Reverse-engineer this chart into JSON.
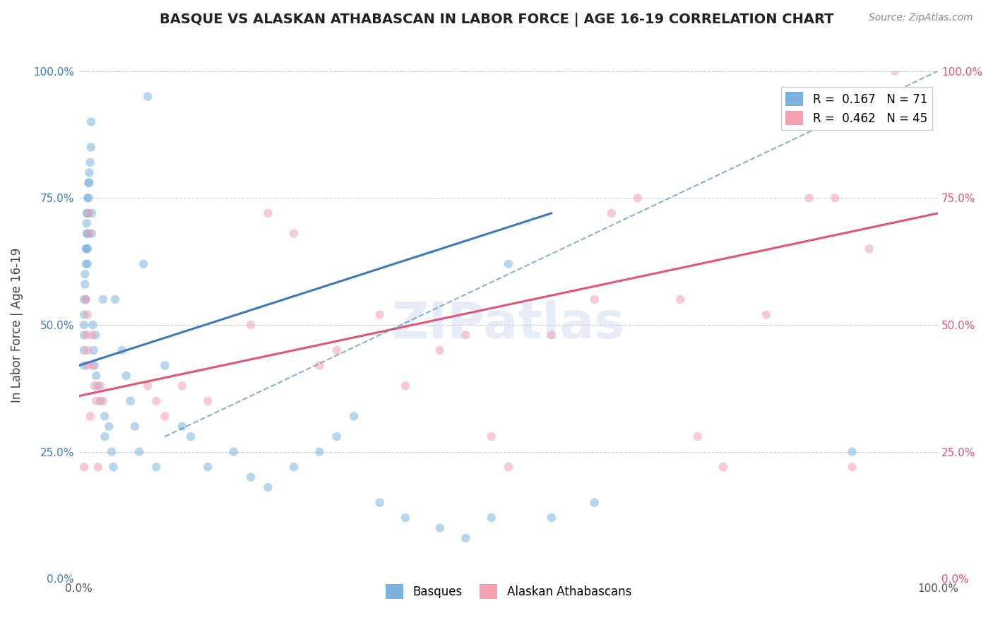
{
  "title": "BASQUE VS ALASKAN ATHABASCAN IN LABOR FORCE | AGE 16-19 CORRELATION CHART",
  "source_text": "Source: ZipAtlas.com",
  "ylabel": "In Labor Force | Age 16-19",
  "xlabel": "",
  "xlim": [
    0.0,
    1.0
  ],
  "ylim": [
    0.0,
    1.0
  ],
  "xtick_labels": [
    "0.0%",
    "100.0%"
  ],
  "ytick_labels": [
    "0.0%",
    "25.0%",
    "50.0%",
    "75.0%",
    "100.0%"
  ],
  "ytick_values": [
    0.0,
    0.25,
    0.5,
    0.75,
    1.0
  ],
  "xtick_values": [
    0.0,
    1.0
  ],
  "grid_color": "#cccccc",
  "background_color": "#ffffff",
  "watermark_text": "ZIPatlas",
  "legend_R1": "R =  0.167",
  "legend_N1": "N = 71",
  "legend_R2": "R =  0.462",
  "legend_N2": "N = 45",
  "color_basque": "#7ab3e0",
  "color_athabascan": "#f4a0b0",
  "color_basque_line": "#3a7abf",
  "color_athabascan_line": "#e05575",
  "marker_size": 80,
  "marker_alpha": 0.55,
  "basque_x": [
    0.006,
    0.006,
    0.006,
    0.006,
    0.006,
    0.006,
    0.007,
    0.007,
    0.008,
    0.008,
    0.008,
    0.009,
    0.009,
    0.009,
    0.009,
    0.01,
    0.01,
    0.01,
    0.01,
    0.01,
    0.011,
    0.011,
    0.012,
    0.012,
    0.013,
    0.014,
    0.014,
    0.015,
    0.015,
    0.016,
    0.017,
    0.018,
    0.019,
    0.02,
    0.022,
    0.025,
    0.028,
    0.03,
    0.03,
    0.035,
    0.038,
    0.04,
    0.042,
    0.05,
    0.055,
    0.06,
    0.065,
    0.07,
    0.075,
    0.08,
    0.09,
    0.1,
    0.12,
    0.13,
    0.15,
    0.18,
    0.2,
    0.22,
    0.25,
    0.28,
    0.3,
    0.32,
    0.35,
    0.38,
    0.42,
    0.45,
    0.48,
    0.5,
    0.55,
    0.6,
    0.9
  ],
  "basque_y": [
    0.5,
    0.52,
    0.48,
    0.45,
    0.55,
    0.42,
    0.6,
    0.58,
    0.65,
    0.62,
    0.55,
    0.7,
    0.68,
    0.65,
    0.72,
    0.75,
    0.72,
    0.68,
    0.65,
    0.62,
    0.78,
    0.75,
    0.8,
    0.78,
    0.82,
    0.85,
    0.9,
    0.72,
    0.68,
    0.5,
    0.45,
    0.42,
    0.48,
    0.4,
    0.38,
    0.35,
    0.55,
    0.32,
    0.28,
    0.3,
    0.25,
    0.22,
    0.55,
    0.45,
    0.4,
    0.35,
    0.3,
    0.25,
    0.62,
    0.95,
    0.22,
    0.42,
    0.3,
    0.28,
    0.22,
    0.25,
    0.2,
    0.18,
    0.22,
    0.25,
    0.28,
    0.32,
    0.15,
    0.12,
    0.1,
    0.08,
    0.12,
    0.62,
    0.12,
    0.15,
    0.25
  ],
  "athabascan_x": [
    0.006,
    0.008,
    0.009,
    0.01,
    0.01,
    0.01,
    0.011,
    0.012,
    0.013,
    0.015,
    0.016,
    0.018,
    0.02,
    0.022,
    0.025,
    0.028,
    0.08,
    0.09,
    0.1,
    0.12,
    0.15,
    0.2,
    0.22,
    0.25,
    0.28,
    0.3,
    0.35,
    0.38,
    0.42,
    0.45,
    0.48,
    0.5,
    0.55,
    0.6,
    0.62,
    0.65,
    0.7,
    0.72,
    0.75,
    0.8,
    0.85,
    0.88,
    0.9,
    0.92,
    0.95
  ],
  "athabascan_y": [
    0.22,
    0.55,
    0.48,
    0.52,
    0.45,
    0.42,
    0.72,
    0.68,
    0.32,
    0.48,
    0.42,
    0.38,
    0.35,
    0.22,
    0.38,
    0.35,
    0.38,
    0.35,
    0.32,
    0.38,
    0.35,
    0.5,
    0.72,
    0.68,
    0.42,
    0.45,
    0.52,
    0.38,
    0.45,
    0.48,
    0.28,
    0.22,
    0.48,
    0.55,
    0.72,
    0.75,
    0.55,
    0.28,
    0.22,
    0.52,
    0.75,
    0.75,
    0.22,
    0.65,
    1.0
  ],
  "basque_trend_x": [
    0.0,
    0.55
  ],
  "basque_trend_y_start": 0.42,
  "basque_trend_y_end": 0.72,
  "athabascan_trend_x": [
    0.0,
    1.0
  ],
  "athabascan_trend_y_start": 0.36,
  "athabascan_trend_y_end": 0.72,
  "dashed_trend_x": [
    0.1,
    1.0
  ],
  "dashed_trend_y_start": 0.28,
  "dashed_trend_y_end": 1.0
}
